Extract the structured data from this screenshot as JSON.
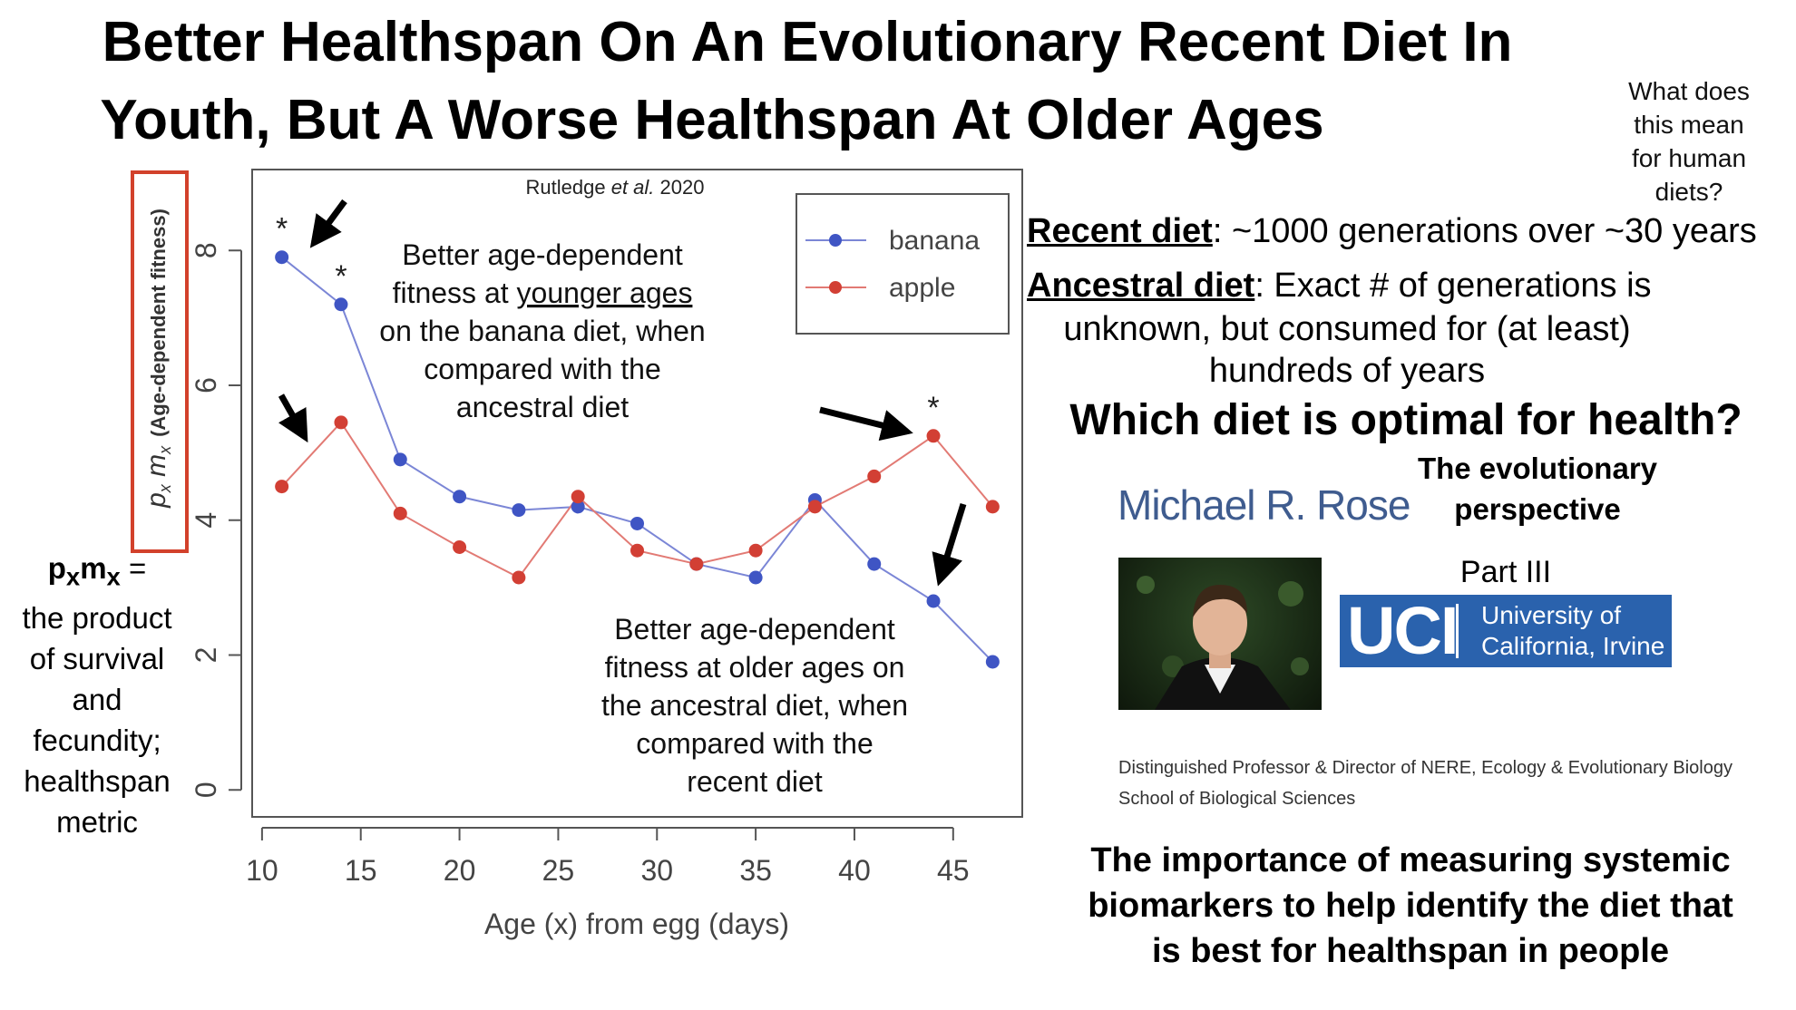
{
  "slide": {
    "title_line1": "Better Healthspan On An Evolutionary Recent Diet In",
    "title_line2": "Youth, But A Worse Healthspan At Older Ages",
    "side_question_lines": [
      "What does",
      "this mean",
      "for human",
      "diets?"
    ],
    "recent_diet_label": "Recent diet",
    "recent_diet_text": ": ~1000 generations over ~30 years",
    "ancestral_diet_label": "Ancestral diet",
    "ancestral_diet_text": ": Exact # of generations is",
    "ancestral_diet_line2": "unknown, but consumed for (at least)",
    "ancestral_diet_line3": "hundreds of years",
    "which_diet": "Which diet is optimal for health?",
    "evo_line1": "The evolutionary",
    "evo_line2": "perspective",
    "speaker": "Michael R. Rose",
    "part": "Part III",
    "uci_logo": "UCI",
    "uci_line1": "University of",
    "uci_line2": "California, Irvine",
    "prof_line1": "Distinguished Professor & Director of NERE, Ecology & Evolutionary Biology",
    "prof_line2": "School of Biological Sciences",
    "importance_lines": [
      "The importance of measuring systemic",
      "biomarkers to help identify the diet that",
      "is best for healthspan in people"
    ],
    "pxmx_def": {
      "symbol_p": "p",
      "sub_x1": "x",
      "symbol_m": "m",
      "sub_x2": "x",
      "equals": " =",
      "lines": [
        "the product",
        "of survival",
        "and",
        "fecundity;",
        "healthspan",
        "metric"
      ]
    }
  },
  "chart_data": {
    "type": "line",
    "citation_author": "Rutledge ",
    "citation_etal": "et al.",
    "citation_year": " 2020",
    "xlabel": "Age (x) from egg (days)",
    "ylabel_main": "p",
    "ylabel_sub1": "x",
    "ylabel_m": " m",
    "ylabel_sub2": "x",
    "ylabel_paren": "(Age-dependent fitness)",
    "xlim": [
      9.5,
      48.5
    ],
    "ylim": [
      -0.4,
      9.2
    ],
    "xticks": [
      10,
      15,
      20,
      25,
      30,
      35,
      40,
      45
    ],
    "yticks": [
      0,
      2,
      4,
      6,
      8
    ],
    "x": [
      11,
      14,
      17,
      20,
      23,
      26,
      29,
      32,
      35,
      38,
      41,
      44,
      47
    ],
    "series": [
      {
        "name": "banana",
        "color": "#7b86d6",
        "marker": "#3f55c4",
        "values": [
          7.9,
          7.2,
          4.9,
          4.35,
          4.15,
          4.2,
          3.95,
          3.35,
          3.15,
          4.3,
          3.35,
          2.8,
          1.9
        ]
      },
      {
        "name": "apple",
        "color": "#e27a74",
        "marker": "#d23f34",
        "values": [
          4.5,
          5.45,
          4.1,
          3.6,
          3.15,
          4.35,
          3.55,
          3.35,
          3.55,
          4.2,
          4.65,
          5.25,
          4.2
        ]
      }
    ],
    "legend_position": "top-right",
    "grid": false,
    "significance": [
      {
        "x": 11,
        "y": 7.9,
        "mark": "*"
      },
      {
        "x": 14,
        "y": 7.2,
        "mark": "*"
      },
      {
        "x": 44,
        "y": 5.25,
        "mark": "*"
      }
    ],
    "annotation_young": {
      "line1": "Better age-dependent",
      "line2_pre": "fitness at ",
      "line2_u": "younger ages",
      "line3": "on the banana diet, when",
      "line4": "compared with the",
      "line5": "ancestral diet"
    },
    "annotation_old": [
      "Better age-dependent",
      "fitness at older ages on",
      "the ancestral diet, when",
      "compared with the",
      "recent diet"
    ]
  }
}
